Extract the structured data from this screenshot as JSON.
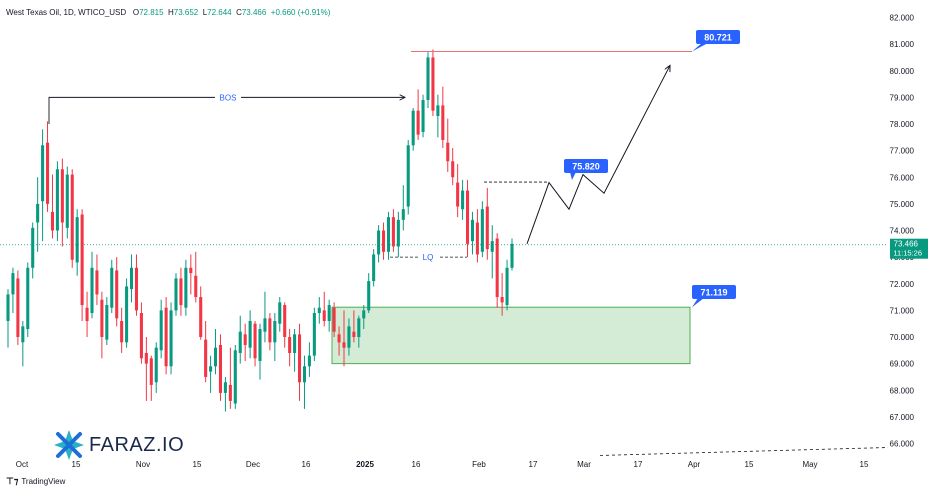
{
  "header": {
    "symbol": "West Texas Oil, 1D, WTICO_USD",
    "o_label": "O",
    "o": "72.815",
    "h_label": "H",
    "h": "73.652",
    "l_label": "L",
    "l": "72.644",
    "c_label": "C",
    "c": "73.466",
    "change": "+0.660 (+0.91%)"
  },
  "price_tag": {
    "price": "73.466",
    "countdown": "11:15:26"
  },
  "annotations": {
    "bos": "BOS",
    "lq": "LQ",
    "target_high": "80.721",
    "target_mid": "75.820",
    "zone_top": "71.119"
  },
  "brand": "FARAZ.IO",
  "footer": "TradingView",
  "colors": {
    "up": "#089981",
    "down": "#f23645",
    "zone_fill": "#d4ecd5",
    "zone_border": "#4caf50",
    "label": "#2962ff",
    "path": "#131722"
  },
  "chart_data": {
    "type": "candlestick",
    "timeframe": "1D",
    "ylim": [
      66,
      82
    ],
    "yticks": [
      "66.000",
      "67.000",
      "68.000",
      "69.000",
      "70.000",
      "71.000",
      "72.000",
      "73.000",
      "74.000",
      "75.000",
      "76.000",
      "77.000",
      "78.000",
      "79.000",
      "80.000",
      "81.000",
      "82.000"
    ],
    "xticks": [
      "Oct",
      "15",
      "Nov",
      "15",
      "Dec",
      "16",
      "2025",
      "16",
      "Feb",
      "17",
      "Mar",
      "17",
      "Apr",
      "15",
      "May",
      "15"
    ],
    "candles": [
      [
        70.6,
        71.8,
        69.6,
        71.6
      ],
      [
        71.6,
        72.6,
        70.9,
        72.4
      ],
      [
        72.2,
        72.5,
        69.7,
        70.0
      ],
      [
        69.8,
        70.6,
        68.9,
        70.4
      ],
      [
        70.3,
        72.8,
        70.0,
        72.6
      ],
      [
        72.6,
        74.3,
        72.2,
        74.1
      ],
      [
        74.3,
        76.0,
        73.2,
        75.0
      ],
      [
        75.1,
        77.8,
        73.6,
        77.2
      ],
      [
        77.3,
        78.1,
        74.7,
        75.0
      ],
      [
        74.7,
        76.1,
        73.7,
        74.0
      ],
      [
        74.0,
        76.6,
        73.6,
        76.3
      ],
      [
        76.3,
        76.7,
        73.4,
        74.3
      ],
      [
        74.1,
        76.4,
        73.7,
        76.1
      ],
      [
        76.1,
        76.3,
        72.6,
        72.9
      ],
      [
        72.8,
        74.8,
        72.3,
        74.5
      ],
      [
        74.6,
        74.8,
        70.6,
        71.2
      ],
      [
        71.1,
        71.7,
        70.0,
        70.6
      ],
      [
        70.9,
        73.2,
        70.7,
        72.6
      ],
      [
        72.5,
        73.1,
        71.2,
        71.6
      ],
      [
        71.4,
        71.7,
        69.2,
        70.0
      ],
      [
        69.9,
        71.5,
        69.7,
        71.2
      ],
      [
        71.1,
        72.9,
        70.9,
        72.6
      ],
      [
        72.5,
        73.0,
        70.4,
        70.7
      ],
      [
        70.6,
        71.1,
        69.4,
        69.8
      ],
      [
        69.8,
        72.2,
        69.6,
        71.9
      ],
      [
        71.8,
        73.1,
        71.3,
        72.6
      ],
      [
        72.6,
        73.1,
        70.8,
        71.0
      ],
      [
        70.9,
        71.3,
        69.0,
        69.2
      ],
      [
        69.4,
        70.0,
        67.6,
        69.0
      ],
      [
        69.2,
        69.3,
        67.6,
        68.2
      ],
      [
        68.3,
        69.8,
        67.9,
        69.6
      ],
      [
        69.5,
        71.4,
        69.2,
        71.0
      ],
      [
        71.1,
        71.5,
        68.6,
        68.9
      ],
      [
        68.9,
        71.3,
        68.6,
        71.0
      ],
      [
        71.0,
        72.4,
        70.8,
        72.2
      ],
      [
        72.2,
        72.6,
        70.8,
        71.2
      ],
      [
        71.1,
        72.9,
        70.8,
        72.6
      ],
      [
        72.6,
        73.1,
        71.6,
        72.4
      ],
      [
        72.3,
        73.2,
        71.3,
        71.5
      ],
      [
        71.5,
        71.9,
        69.9,
        70.0
      ],
      [
        69.9,
        70.6,
        68.3,
        68.5
      ],
      [
        68.7,
        69.3,
        67.9,
        68.9
      ],
      [
        68.9,
        70.3,
        68.6,
        69.6
      ],
      [
        69.7,
        70.1,
        67.6,
        67.9
      ],
      [
        67.9,
        68.5,
        67.2,
        68.3
      ],
      [
        68.2,
        69.6,
        67.3,
        67.6
      ],
      [
        67.5,
        69.7,
        67.3,
        69.5
      ],
      [
        69.4,
        70.8,
        69.0,
        70.2
      ],
      [
        70.1,
        70.5,
        69.1,
        69.7
      ],
      [
        69.6,
        71.0,
        69.2,
        70.6
      ],
      [
        70.5,
        70.6,
        68.9,
        69.2
      ],
      [
        69.1,
        70.5,
        68.4,
        70.3
      ],
      [
        70.2,
        71.7,
        69.8,
        70.7
      ],
      [
        70.7,
        70.9,
        69.5,
        69.8
      ],
      [
        69.8,
        70.9,
        69.1,
        70.6
      ],
      [
        70.5,
        71.5,
        70.2,
        71.3
      ],
      [
        71.2,
        71.3,
        69.6,
        70.0
      ],
      [
        70.0,
        70.3,
        68.9,
        69.4
      ],
      [
        69.4,
        70.3,
        68.7,
        70.1
      ],
      [
        70.1,
        70.5,
        67.6,
        68.3
      ],
      [
        68.3,
        69.3,
        67.3,
        68.9
      ],
      [
        68.9,
        69.8,
        68.5,
        69.3
      ],
      [
        69.3,
        71.1,
        69.1,
        70.9
      ],
      [
        70.9,
        71.5,
        70.5,
        71.1
      ],
      [
        71.0,
        71.7,
        70.4,
        70.6
      ],
      [
        70.6,
        71.4,
        70.2,
        71.2
      ],
      [
        71.1,
        71.3,
        70.0,
        70.2
      ],
      [
        70.1,
        70.4,
        69.3,
        69.8
      ],
      [
        69.8,
        71.0,
        68.9,
        69.6
      ],
      [
        69.6,
        70.7,
        69.3,
        70.4
      ],
      [
        70.2,
        71.0,
        69.8,
        70.0
      ],
      [
        70.0,
        70.8,
        69.6,
        70.7
      ],
      [
        70.7,
        71.2,
        70.3,
        71.0
      ],
      [
        71.0,
        72.4,
        70.9,
        72.1
      ],
      [
        72.1,
        73.3,
        71.9,
        73.1
      ],
      [
        73.1,
        74.2,
        72.8,
        74.0
      ],
      [
        74.0,
        74.3,
        72.9,
        73.2
      ],
      [
        73.2,
        74.7,
        72.9,
        74.5
      ],
      [
        74.5,
        74.8,
        73.2,
        73.4
      ],
      [
        73.4,
        74.7,
        73.0,
        74.4
      ],
      [
        74.4,
        75.7,
        74.0,
        74.8
      ],
      [
        74.9,
        77.4,
        74.6,
        77.2
      ],
      [
        77.2,
        78.6,
        77.0,
        78.5
      ],
      [
        78.5,
        79.3,
        77.4,
        77.6
      ],
      [
        77.7,
        79.1,
        77.5,
        78.9
      ],
      [
        78.9,
        80.7,
        78.6,
        80.5
      ],
      [
        80.5,
        80.8,
        78.3,
        78.5
      ],
      [
        78.3,
        79.1,
        77.5,
        78.7
      ],
      [
        78.7,
        79.4,
        77.1,
        77.4
      ],
      [
        77.3,
        78.2,
        76.2,
        76.6
      ],
      [
        76.6,
        77.1,
        75.7,
        76.0
      ],
      [
        75.8,
        76.5,
        74.5,
        74.9
      ],
      [
        74.8,
        75.9,
        74.4,
        75.5
      ],
      [
        75.5,
        75.9,
        73.0,
        73.5
      ],
      [
        73.6,
        74.7,
        73.1,
        74.4
      ],
      [
        74.3,
        74.8,
        72.8,
        73.1
      ],
      [
        73.2,
        75.1,
        73.0,
        74.8
      ],
      [
        74.9,
        75.6,
        72.9,
        73.3
      ],
      [
        73.2,
        74.2,
        72.2,
        73.6
      ],
      [
        73.7,
        73.9,
        71.1,
        71.5
      ],
      [
        71.5,
        72.4,
        70.8,
        71.3
      ],
      [
        71.2,
        72.9,
        71.0,
        72.6
      ],
      [
        72.6,
        73.7,
        72.5,
        73.5
      ]
    ],
    "annotations": {
      "bos": {
        "label": "BOS",
        "price": 79.0
      },
      "lq": {
        "label": "LQ",
        "price": 73.0
      },
      "target_high": {
        "label": "80.721",
        "price": 80.721
      },
      "target_mid": {
        "label": "75.820",
        "price": 75.82
      },
      "zone": {
        "label": "71.119",
        "top": 71.119,
        "bottom": 69.0
      }
    },
    "projection": [
      73.5,
      75.8,
      74.8,
      76.1,
      75.4,
      80.2
    ],
    "last_price": 73.466,
    "grid": false
  }
}
